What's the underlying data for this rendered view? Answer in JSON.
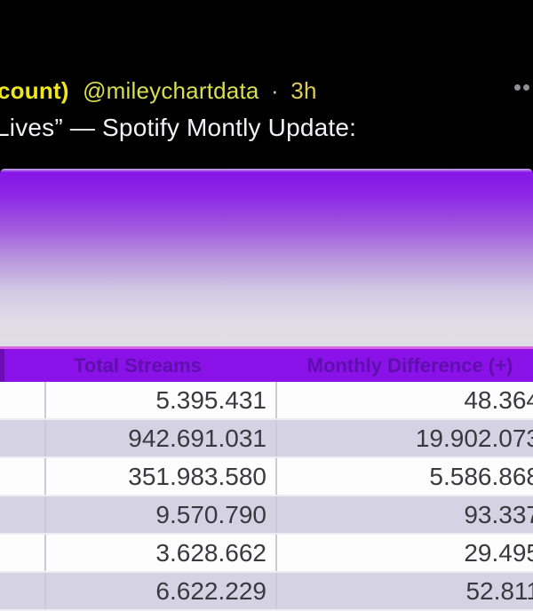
{
  "tweet": {
    "author_fragment": "count)",
    "handle": "@mileychartdata",
    "separator": "·",
    "timestamp": "3h",
    "body": "Lives” — Spotify Montly Update:",
    "more_menu_icon": "more-ellipsis-icon"
  },
  "table": {
    "headers": [
      "",
      "Total Streams",
      "Monthly Difference (+)"
    ],
    "rows": [
      [
        "",
        "5.395.431",
        "48.364"
      ],
      [
        "",
        "942.691.031",
        "19.902.073"
      ],
      [
        "",
        "351.983.580",
        "5.586.868"
      ],
      [
        "",
        "9.570.790",
        "93.337"
      ],
      [
        "",
        "3.628.662",
        "29.495"
      ],
      [
        "",
        "6.622.229",
        "52.811"
      ]
    ]
  },
  "chart_data": {
    "type": "table",
    "columns": [
      "Total Streams",
      "Monthly Difference (+)"
    ],
    "rows": [
      [
        "5.395.431",
        "48.364"
      ],
      [
        "942.691.031",
        "19.902.073"
      ],
      [
        "351.983.580",
        "5.586.868"
      ],
      [
        "9.570.790",
        "93.337"
      ],
      [
        "3.628.662",
        "29.495"
      ],
      [
        "6.622.229",
        "52.811"
      ]
    ]
  },
  "colors": {
    "background_black": "#000000",
    "accent_purple": "#8A12E8",
    "header_text_purple": "#5E0FAC",
    "header_top_line_pink": "#DA67E2",
    "row_alt_lavender": "#D5D2E4",
    "row_white": "#FDFDFE",
    "tweet_author_yellow": "#EFE71C",
    "tweet_handle_yellow": "#D9DE4C",
    "tweet_body_white": "#F2F1F4"
  }
}
